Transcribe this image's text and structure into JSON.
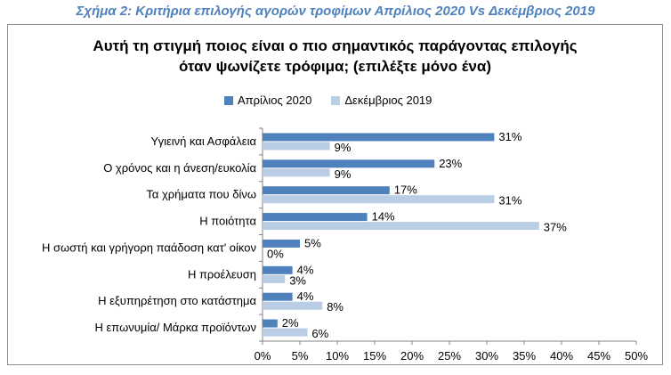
{
  "caption": "Σχήμα 2: Κριτήρια επιλογής αγορών τροφίμων Απρίλιος 2020 Vs Δεκέμβριος 2019",
  "chart_data": {
    "type": "bar",
    "orientation": "horizontal",
    "title_lines": [
      "Αυτή τη στιγμή ποιος είναι ο πιο σημαντικός παράγοντας επιλογής",
      "όταν ψωνίζετε τρόφιμα; (επιλέξτε μόνο ένα)"
    ],
    "categories": [
      "Υγιεινή και Ασφάλεια",
      "Ο χρόνος και η άνεση/ευκολία",
      "Τα χρήματα που δίνω",
      "Η ποιότητα",
      "Η σωστή και γρήγορη παάδοση κατ' οίκον",
      "Η προέλευση",
      "Η εξυπηρέτηση στο κατάστημα",
      "Η επωνυμία/ Μάρκα προϊόντων"
    ],
    "series": [
      {
        "name": "Απρίλιος 2020",
        "color": "#4f81bd",
        "values": [
          31,
          23,
          17,
          14,
          5,
          4,
          4,
          2
        ]
      },
      {
        "name": "Δεκέμβριος 2019",
        "color": "#b9cde5",
        "values": [
          9,
          9,
          31,
          37,
          0,
          3,
          8,
          6
        ]
      }
    ],
    "xlim": [
      0,
      50
    ],
    "xticks": [
      0,
      5,
      10,
      15,
      20,
      25,
      30,
      35,
      40,
      45,
      50
    ],
    "value_suffix": "%",
    "legend_position": "top",
    "grid": false
  }
}
